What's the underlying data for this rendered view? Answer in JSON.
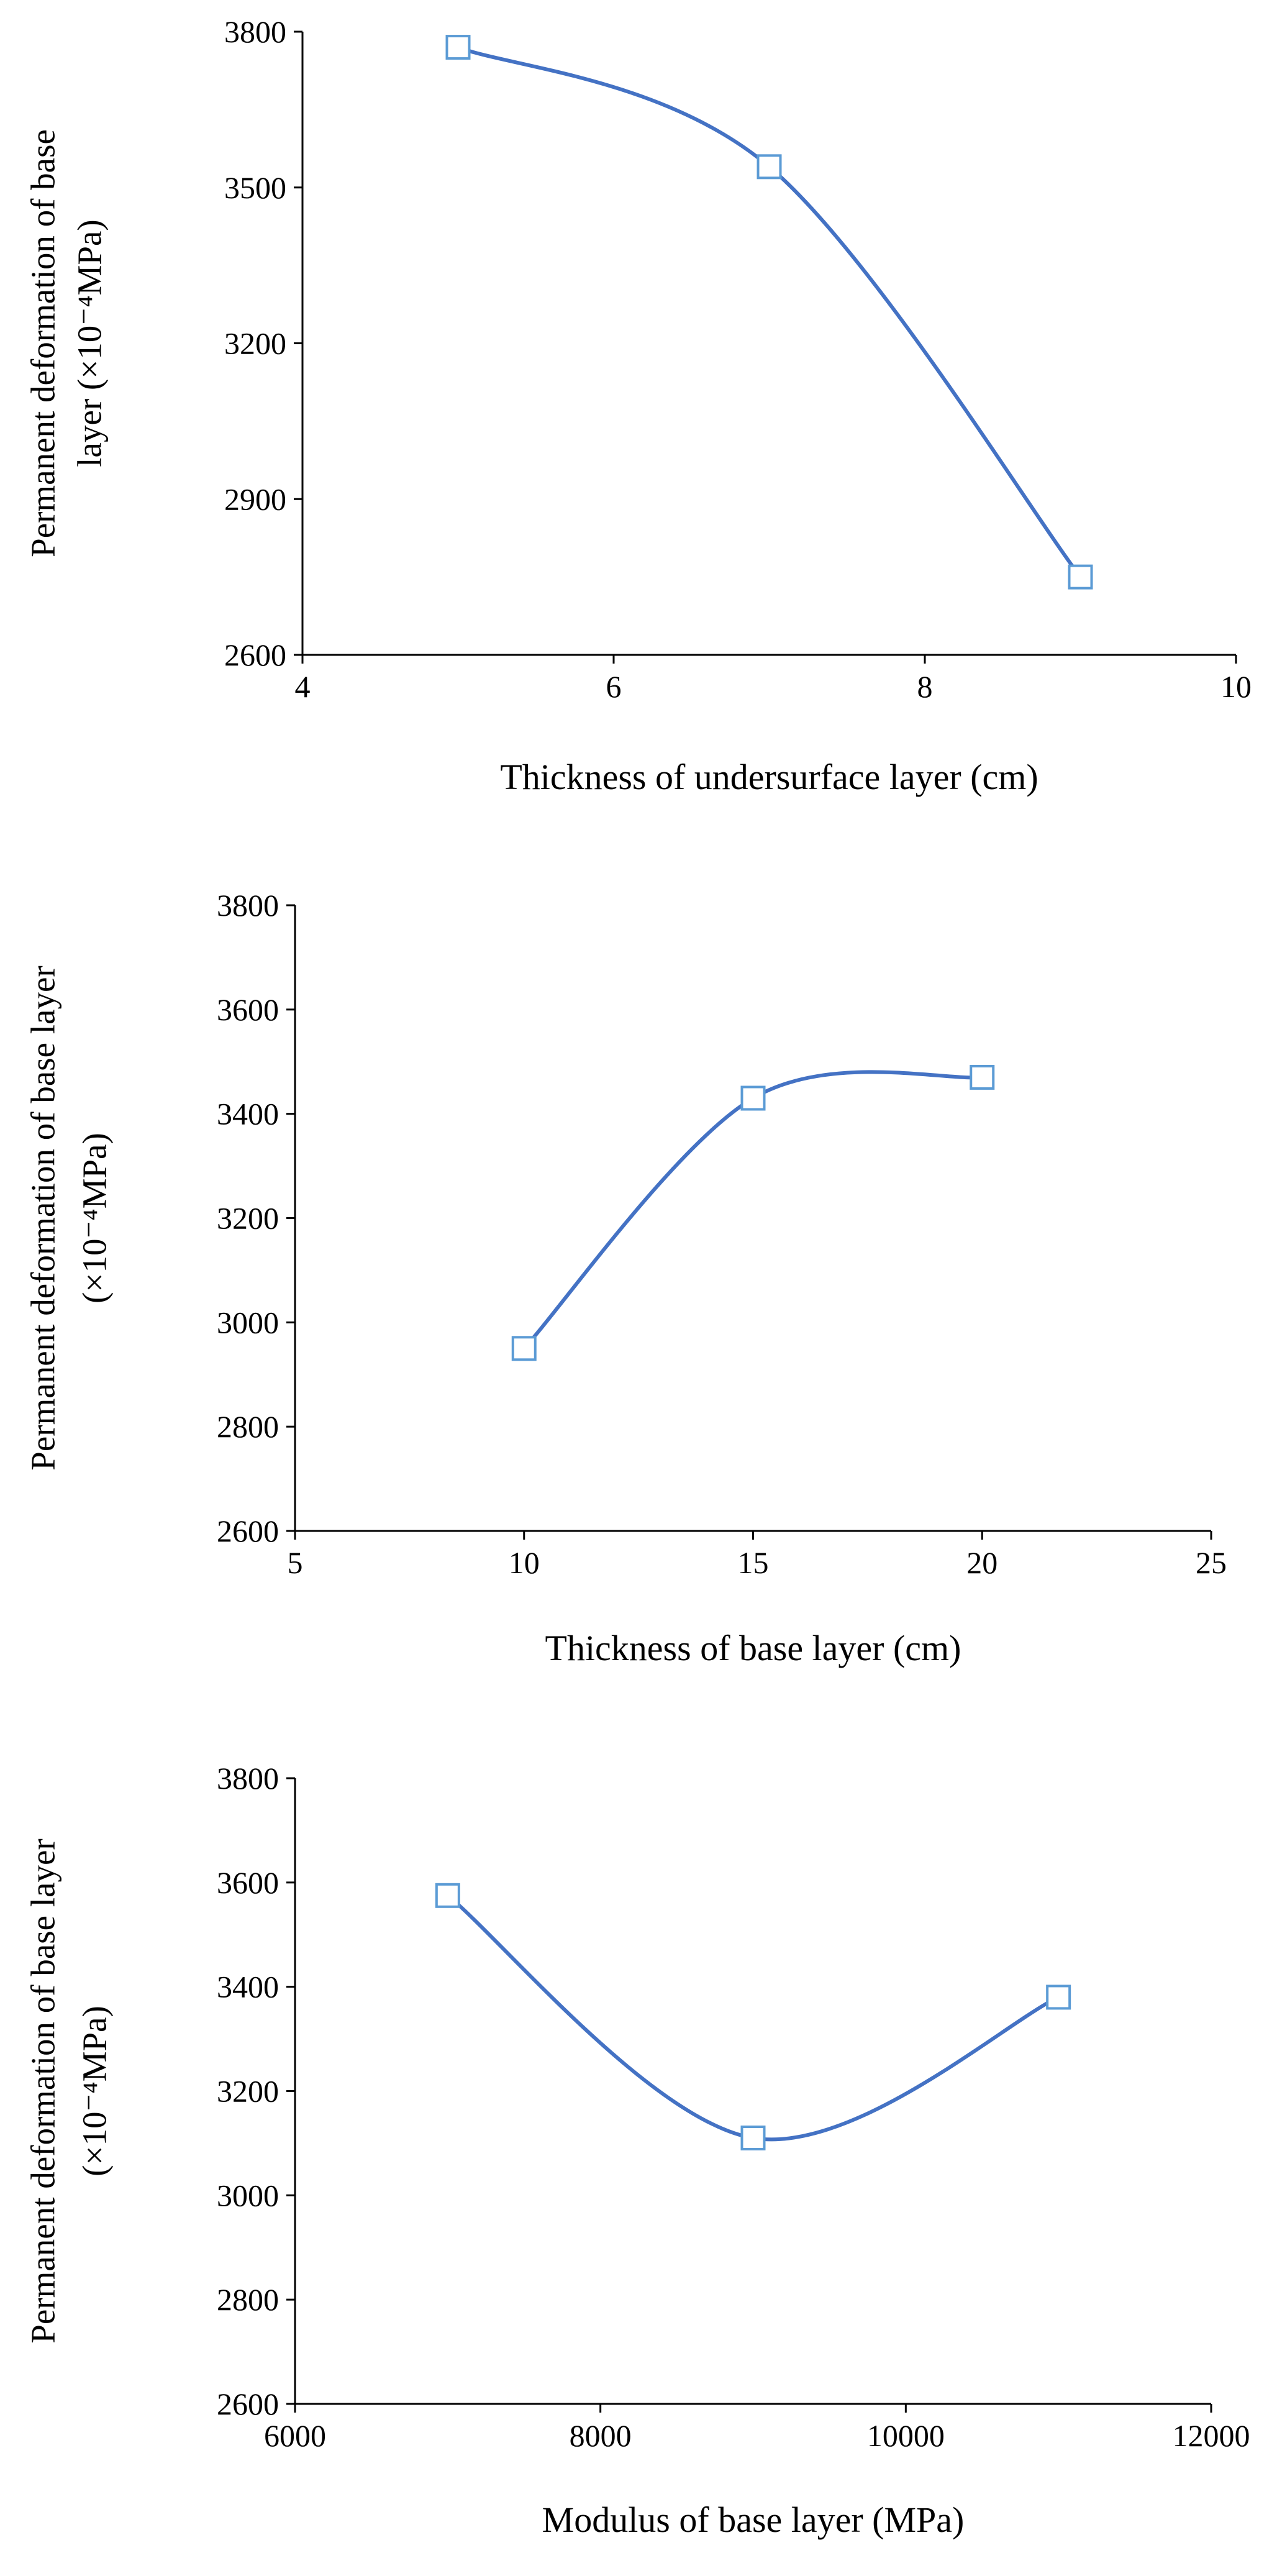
{
  "figure": {
    "line_color": "#4472c4",
    "marker_stroke": "#5b9bd5",
    "marker_fill": "#ffffff",
    "axis_color": "#000000"
  },
  "chart_data": [
    {
      "type": "line",
      "smooth": true,
      "marker": "square",
      "title": "",
      "xlabel": "Thickness of undersurface layer (cm)",
      "ylabel_lines": [
        "Permanent deformation of base",
        "layer (×10⁻⁴MPa)"
      ],
      "xlim": [
        4,
        10
      ],
      "ylim": [
        2600,
        3800
      ],
      "xticks": [
        "4",
        "6",
        "8",
        "10"
      ],
      "yticks": [
        "2600",
        "2900",
        "3200",
        "3500",
        "3800"
      ],
      "grid": false,
      "legend": "none",
      "series": [
        {
          "name": "Permanent deformation",
          "x": [
            5,
            7,
            9
          ],
          "y": [
            3770,
            3540,
            2750
          ]
        }
      ]
    },
    {
      "type": "line",
      "smooth": true,
      "marker": "square",
      "title": "",
      "xlabel": "Thickness of base layer (cm)",
      "ylabel_lines": [
        "Permanent deformation of base layer",
        "(×10⁻⁴MPa)"
      ],
      "xlim": [
        5,
        25
      ],
      "ylim": [
        2600,
        3800
      ],
      "xticks": [
        "5",
        "10",
        "15",
        "20",
        "25"
      ],
      "yticks": [
        "2600",
        "2800",
        "3000",
        "3200",
        "3400",
        "3600",
        "3800"
      ],
      "grid": false,
      "legend": "none",
      "series": [
        {
          "name": "Permanent deformation",
          "x": [
            10,
            15,
            20
          ],
          "y": [
            2950,
            3430,
            3470
          ]
        }
      ]
    },
    {
      "type": "line",
      "smooth": true,
      "marker": "square",
      "title": "",
      "xlabel": "Modulus of base layer (MPa)",
      "ylabel_lines": [
        "Permanent deformation of base layer",
        "(×10⁻⁴MPa)"
      ],
      "xlim": [
        6000,
        12000
      ],
      "ylim": [
        2600,
        3800
      ],
      "xticks": [
        "6000",
        "8000",
        "10000",
        "12000"
      ],
      "yticks": [
        "2600",
        "2800",
        "3000",
        "3200",
        "3400",
        "3600",
        "3800"
      ],
      "grid": false,
      "legend": "none",
      "series": [
        {
          "name": "Permanent deformation",
          "x": [
            7000,
            9000,
            11000
          ],
          "y": [
            3575,
            3110,
            3380
          ]
        }
      ]
    }
  ]
}
